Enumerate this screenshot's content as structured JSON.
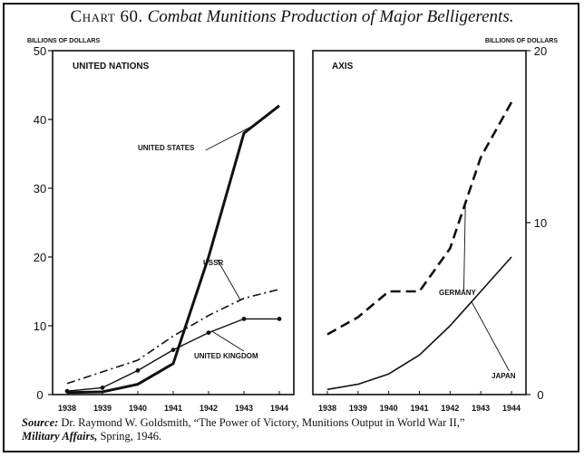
{
  "header": {
    "chart_number": "Chart 60.",
    "chart_title": "Combat Munitions Production of Major Belligerents."
  },
  "source": {
    "label": "Source:",
    "text": "Dr. Raymond W. Goldsmith, “The Power of Victory, Munitions Output in World War II,”",
    "journal": "Military Affairs,",
    "date": "Spring, 1946."
  },
  "colors": {
    "ink": "#111111",
    "background": "#ffffff"
  },
  "chart_data": [
    {
      "type": "line",
      "panel_label": "UNITED NATIONS",
      "ylabel": "BILLIONS OF DOLLARS",
      "ylim": [
        0,
        50
      ],
      "yticks": [
        0,
        10,
        20,
        30,
        40,
        50
      ],
      "categories": [
        "1938",
        "1939",
        "1940",
        "1941",
        "1942",
        "1943",
        "1944"
      ],
      "series": [
        {
          "name": "UNITED STATES",
          "style": "solid-thick",
          "values": [
            0.3,
            0.4,
            1.5,
            4.5,
            20,
            38,
            42
          ]
        },
        {
          "name": "USSR",
          "style": "dash-dot",
          "values": [
            1.6,
            3.3,
            5,
            8.5,
            11.5,
            14,
            15.3
          ]
        },
        {
          "name": "UNITED KINGDOM",
          "style": "solid-dots",
          "values": [
            0.5,
            1,
            3.5,
            6.5,
            9,
            11,
            11
          ]
        }
      ]
    },
    {
      "type": "line",
      "panel_label": "AXIS",
      "ylabel": "BILLIONS OF DOLLARS",
      "ylim": [
        0,
        20
      ],
      "yticks": [
        0,
        10,
        20
      ],
      "categories": [
        "1938",
        "1939",
        "1940",
        "1941",
        "1942",
        "1943",
        "1944"
      ],
      "series": [
        {
          "name": "GERMANY",
          "style": "dashed",
          "values": [
            3.5,
            4.5,
            6,
            6,
            8.5,
            13.8,
            17
          ]
        },
        {
          "name": "JAPAN",
          "style": "solid",
          "values": [
            0.3,
            0.6,
            1.2,
            2.3,
            4,
            6,
            8
          ]
        }
      ]
    }
  ]
}
